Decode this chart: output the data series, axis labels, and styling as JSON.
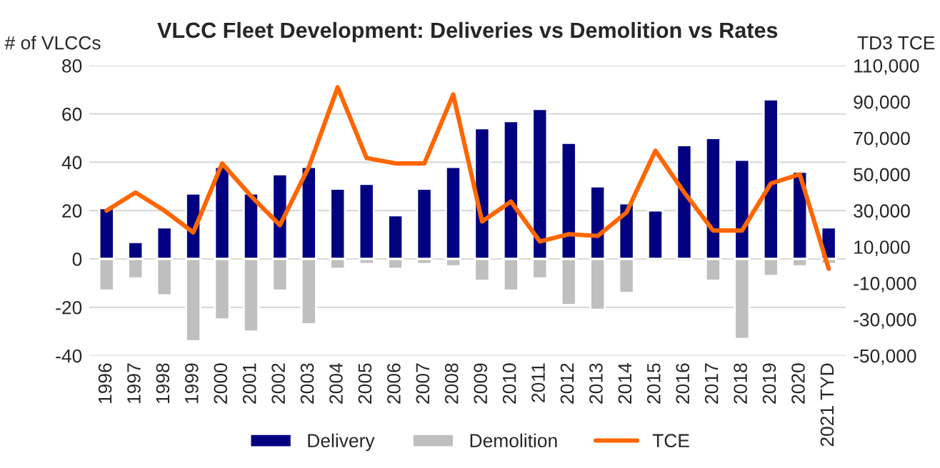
{
  "chart_data": {
    "type": "bar",
    "title": "VLCC Fleet Development: Deliveries vs Demolition vs Rates",
    "ylabel": "# of VLCCs",
    "y2label": "TD3 TCE",
    "categories": [
      "1996",
      "1997",
      "1998",
      "1999",
      "2000",
      "2001",
      "2002",
      "2003",
      "2004",
      "2005",
      "2006",
      "2007",
      "2008",
      "2009",
      "2010",
      "2011",
      "2012",
      "2013",
      "2014",
      "2015",
      "2016",
      "2017",
      "2018",
      "2019",
      "2020",
      "2021 TYD"
    ],
    "series": [
      {
        "name": "Delivery",
        "color": "#000080",
        "values": [
          21,
          7,
          13,
          27,
          38,
          27,
          35,
          38,
          29,
          31,
          18,
          29,
          38,
          54,
          57,
          62,
          48,
          30,
          23,
          20,
          47,
          50,
          41,
          66,
          36,
          13
        ]
      },
      {
        "name": "Demolition",
        "color": "#bfbfbf",
        "values": [
          -13,
          -8,
          -15,
          -34,
          -25,
          -30,
          -13,
          -27,
          -4,
          -2,
          -4,
          -2,
          -3,
          -9,
          -13,
          -8,
          -19,
          -21,
          -14,
          -1,
          -1,
          -9,
          -33,
          -7,
          -3,
          -2
        ]
      },
      {
        "name": "TCE",
        "type": "line",
        "axis": "y2",
        "color": "#ff6600",
        "values": [
          30000,
          40000,
          30000,
          18000,
          56000,
          38000,
          22000,
          54000,
          98000,
          59000,
          56000,
          56000,
          94000,
          24000,
          35000,
          13000,
          17000,
          16000,
          29000,
          63000,
          40000,
          19000,
          19000,
          45000,
          50000,
          -2000
        ]
      }
    ],
    "ylim": [
      -40,
      80
    ],
    "yticks": [
      -40,
      -20,
      0,
      20,
      40,
      60,
      80
    ],
    "y2lim": [
      -50000,
      110000
    ],
    "y2ticks": [
      {
        "value": -50000,
        "label": "-50,000"
      },
      {
        "value": -30000,
        "label": "-30,000"
      },
      {
        "value": -10000,
        "label": "-10,000"
      },
      {
        "value": 10000,
        "label": "10,000"
      },
      {
        "value": 30000,
        "label": "30,000"
      },
      {
        "value": 50000,
        "label": "50,000"
      },
      {
        "value": 70000,
        "label": "70,000"
      },
      {
        "value": 90000,
        "label": "90,000"
      },
      {
        "value": 110000,
        "label": "110,000"
      }
    ],
    "stacked": true,
    "grid": "y",
    "legend": "bottom"
  }
}
